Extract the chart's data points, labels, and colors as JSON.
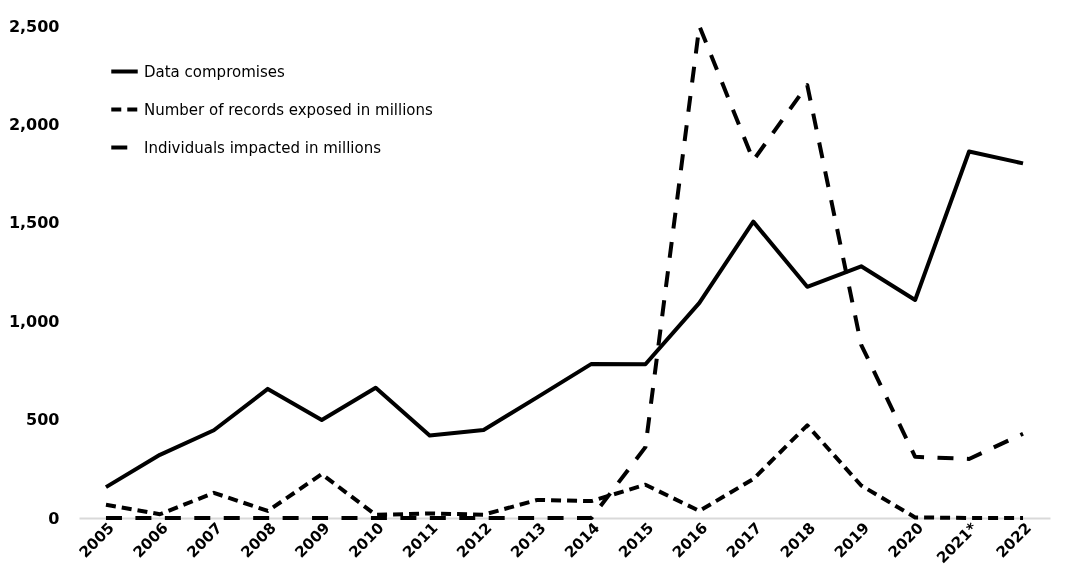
{
  "chart_data": {
    "type": "line",
    "categories": [
      "2005",
      "2006",
      "2007",
      "2008",
      "2009",
      "2010",
      "2011",
      "2012",
      "2013",
      "2014",
      "2015",
      "2016",
      "2017",
      "2018",
      "2019",
      "2020",
      "2021*",
      "2022"
    ],
    "series": [
      {
        "name": "Data compromises",
        "color": "#000000",
        "line_style": "solid",
        "values": [
          157,
          321,
          446,
          656,
          498,
          662,
          419,
          447,
          614,
          783,
          781,
          1093,
          1506,
          1175,
          1279,
          1108,
          1862,
          1802
        ]
      },
      {
        "name": "Number of records exposed in millions",
        "color": "#000000",
        "line_style": "dashed",
        "values": [
          67,
          19,
          128,
          36,
          223,
          16,
          23,
          17,
          92,
          86,
          169,
          36,
          198,
          471,
          165,
          3,
          0,
          0
        ]
      },
      {
        "name": "Individuals impacted in millions",
        "color": "#000000",
        "line_style": "dashed",
        "values": [
          0,
          0,
          0,
          0,
          0,
          0,
          0,
          0,
          0,
          0,
          360,
          2500,
          1817,
          2200,
          880,
          311,
          300,
          428
        ]
      }
    ],
    "ylim": [
      0,
      2500
    ],
    "yticks": [
      {
        "value": 0,
        "label": "0"
      },
      {
        "value": 500,
        "label": "500"
      },
      {
        "value": 1000,
        "label": "1,000"
      },
      {
        "value": 1500,
        "label": "1,500"
      },
      {
        "value": 2000,
        "label": "2,000"
      },
      {
        "value": 2500,
        "label": "2,500"
      }
    ],
    "grid": false,
    "legend": "top left",
    "marker": "none"
  }
}
